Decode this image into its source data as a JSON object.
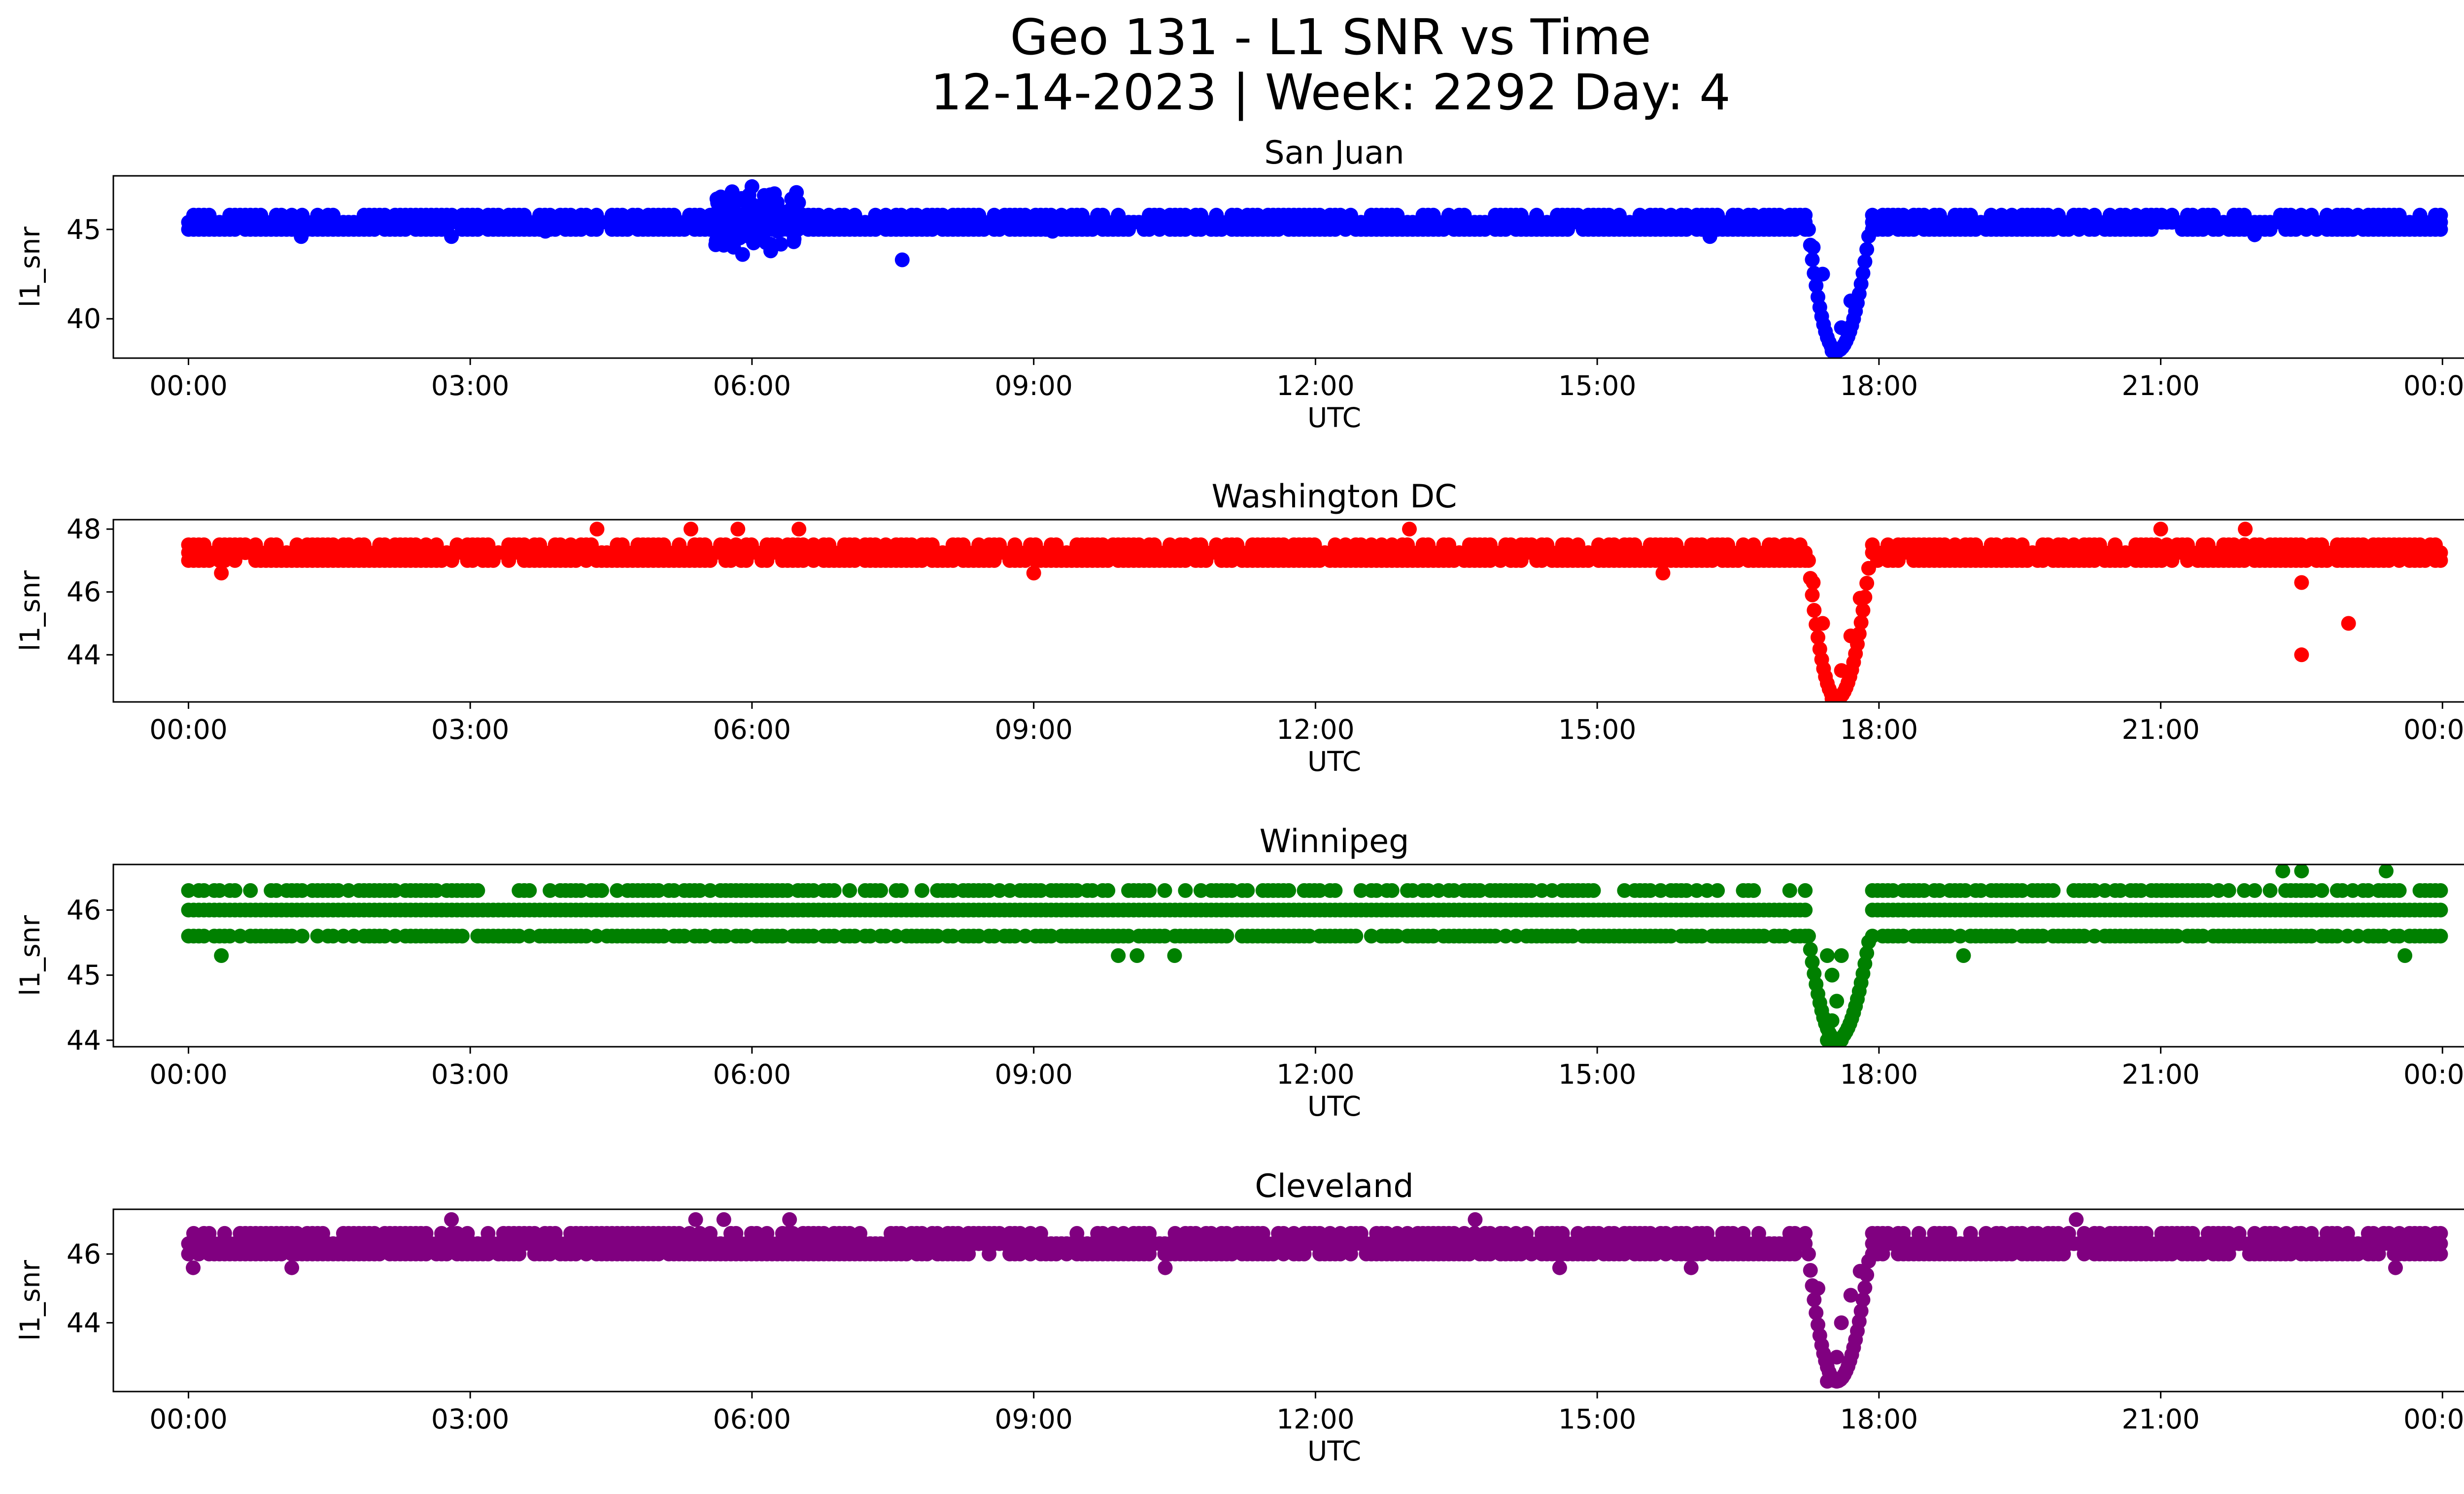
{
  "figure": {
    "title_line1": "Geo 131 - L1 SNR vs Time",
    "title_line2": "12-14-2023 | Week: 2292 Day: 4"
  },
  "chart_data": [
    {
      "type": "scatter",
      "title": "San Juan",
      "xlabel": "UTC",
      "ylabel": "l1_snr",
      "color": "#0000ff",
      "x_range_hours": [
        -0.8,
        25.2
      ],
      "xticks": [
        "00:00",
        "03:00",
        "06:00",
        "09:00",
        "12:00",
        "15:00",
        "18:00",
        "21:00",
        "00:00"
      ],
      "ylim": [
        37.8,
        48.0
      ],
      "yticks": [
        40,
        45
      ],
      "baseline_levels": [
        45.0,
        45.4,
        45.8
      ],
      "sparse_points": [
        [
          1.2,
          44.6
        ],
        [
          2.8,
          44.6
        ],
        [
          3.8,
          44.9
        ],
        [
          5.9,
          43.6
        ],
        [
          6.0,
          47.4
        ],
        [
          6.2,
          43.8
        ],
        [
          7.6,
          43.3
        ],
        [
          9.2,
          44.9
        ],
        [
          16.2,
          44.6
        ],
        [
          17.5,
          38.2
        ],
        [
          17.6,
          39.5
        ],
        [
          17.7,
          41.0
        ],
        [
          17.85,
          43.2
        ],
        [
          17.4,
          42.5
        ],
        [
          17.3,
          44.0
        ],
        [
          22.0,
          44.7
        ]
      ]
    },
    {
      "type": "scatter",
      "title": "Washington DC",
      "xlabel": "UTC",
      "ylabel": "l1_snr",
      "color": "#ff0000",
      "x_range_hours": [
        -0.8,
        25.2
      ],
      "xticks": [
        "00:00",
        "03:00",
        "06:00",
        "09:00",
        "12:00",
        "15:00",
        "18:00",
        "21:00",
        "00:00"
      ],
      "ylim": [
        42.5,
        48.3
      ],
      "yticks": [
        44,
        46,
        48
      ],
      "baseline_levels": [
        47.0,
        47.25,
        47.5
      ],
      "sparse_points": [
        [
          0.35,
          46.6
        ],
        [
          4.35,
          48.0
        ],
        [
          5.35,
          48.0
        ],
        [
          5.85,
          48.0
        ],
        [
          6.5,
          48.0
        ],
        [
          9.0,
          46.6
        ],
        [
          13.0,
          48.0
        ],
        [
          15.7,
          46.6
        ],
        [
          17.5,
          42.6
        ],
        [
          17.6,
          43.5
        ],
        [
          17.7,
          44.6
        ],
        [
          17.8,
          45.8
        ],
        [
          17.4,
          45.0
        ],
        [
          17.3,
          46.3
        ],
        [
          21.0,
          48.0
        ],
        [
          21.9,
          48.0
        ],
        [
          22.5,
          46.3
        ],
        [
          22.5,
          44.0
        ],
        [
          23.0,
          45.0
        ]
      ]
    },
    {
      "type": "scatter",
      "title": "Winnipeg",
      "xlabel": "UTC",
      "ylabel": "l1_snr",
      "color": "#008000",
      "x_range_hours": [
        -0.8,
        25.2
      ],
      "xticks": [
        "00:00",
        "03:00",
        "06:00",
        "09:00",
        "12:00",
        "15:00",
        "18:00",
        "21:00",
        "00:00"
      ],
      "ylim": [
        43.9,
        46.7
      ],
      "yticks": [
        44,
        45,
        46
      ],
      "baseline_levels": [
        45.6,
        46.0,
        46.3
      ],
      "sparse_points": [
        [
          0.35,
          45.3
        ],
        [
          9.9,
          45.3
        ],
        [
          10.1,
          45.3
        ],
        [
          10.5,
          45.3
        ],
        [
          17.45,
          44.0
        ],
        [
          17.6,
          44.0
        ],
        [
          17.5,
          44.3
        ],
        [
          17.55,
          44.6
        ],
        [
          17.5,
          45.0
        ],
        [
          17.6,
          45.3
        ],
        [
          17.45,
          45.3
        ],
        [
          18.9,
          45.3
        ],
        [
          22.3,
          46.6
        ],
        [
          22.5,
          46.6
        ],
        [
          23.4,
          46.6
        ],
        [
          23.6,
          45.3
        ]
      ]
    },
    {
      "type": "scatter",
      "title": "Cleveland",
      "xlabel": "UTC",
      "ylabel": "l1_snr",
      "color": "#800080",
      "x_range_hours": [
        -0.8,
        25.2
      ],
      "xticks": [
        "00:00",
        "03:00",
        "06:00",
        "09:00",
        "12:00",
        "15:00",
        "18:00",
        "21:00",
        "00:00"
      ],
      "ylim": [
        42.0,
        47.3
      ],
      "yticks": [
        44,
        46
      ],
      "baseline_levels": [
        46.0,
        46.3,
        46.6
      ],
      "sparse_points": [
        [
          0.05,
          45.6
        ],
        [
          1.1,
          45.6
        ],
        [
          2.8,
          47.0
        ],
        [
          5.4,
          47.0
        ],
        [
          5.7,
          47.0
        ],
        [
          6.4,
          47.0
        ],
        [
          10.4,
          45.6
        ],
        [
          13.7,
          47.0
        ],
        [
          14.6,
          45.6
        ],
        [
          16.0,
          45.6
        ],
        [
          17.45,
          42.3
        ],
        [
          17.55,
          43.0
        ],
        [
          17.6,
          44.0
        ],
        [
          17.7,
          44.8
        ],
        [
          17.8,
          45.5
        ],
        [
          17.35,
          45.0
        ],
        [
          20.1,
          47.0
        ],
        [
          23.5,
          45.6
        ]
      ]
    }
  ]
}
